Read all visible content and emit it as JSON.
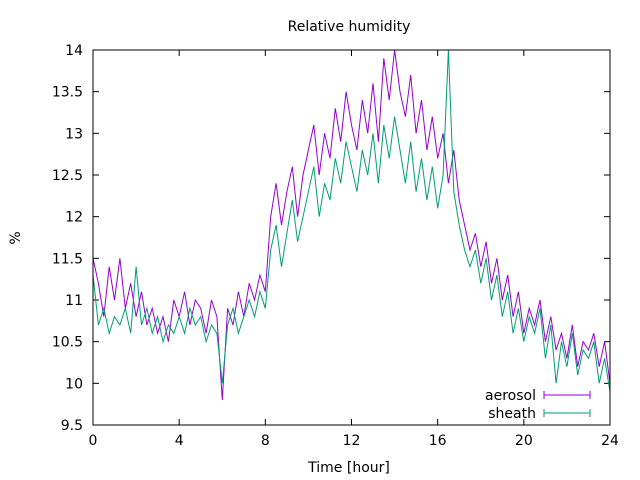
{
  "chart_data": {
    "type": "line",
    "title": "Relative humidity",
    "xlabel": "Time [hour]",
    "ylabel": "%",
    "xlim": [
      0,
      24
    ],
    "ylim": [
      9.5,
      14
    ],
    "xticks": [
      0,
      4,
      8,
      12,
      16,
      20,
      24
    ],
    "yticks": [
      9.5,
      10,
      10.5,
      11,
      11.5,
      12,
      12.5,
      13,
      13.5,
      14
    ],
    "grid": false,
    "legend": "bottom-right",
    "series": [
      {
        "name": "aerosol",
        "color": "#9400d3",
        "x": [
          0.0,
          0.25,
          0.5,
          0.75,
          1.0,
          1.25,
          1.5,
          1.75,
          2.0,
          2.25,
          2.5,
          2.75,
          3.0,
          3.25,
          3.5,
          3.75,
          4.0,
          4.25,
          4.5,
          4.75,
          5.0,
          5.25,
          5.5,
          5.75,
          6.0,
          6.25,
          6.5,
          6.75,
          7.0,
          7.25,
          7.5,
          7.75,
          8.0,
          8.25,
          8.5,
          8.75,
          9.0,
          9.25,
          9.5,
          9.75,
          10.0,
          10.25,
          10.5,
          10.75,
          11.0,
          11.25,
          11.5,
          11.75,
          12.0,
          12.25,
          12.5,
          12.75,
          13.0,
          13.25,
          13.5,
          13.75,
          14.0,
          14.25,
          14.5,
          14.75,
          15.0,
          15.25,
          15.5,
          15.75,
          16.0,
          16.25,
          16.5,
          16.75,
          17.0,
          17.25,
          17.5,
          17.75,
          18.0,
          18.25,
          18.5,
          18.75,
          19.0,
          19.25,
          19.5,
          19.75,
          20.0,
          20.25,
          20.5,
          20.75,
          21.0,
          21.25,
          21.5,
          21.75,
          22.0,
          22.25,
          22.5,
          22.75,
          23.0,
          23.25,
          23.5,
          23.75,
          24.0
        ],
        "values": [
          11.5,
          11.2,
          10.8,
          11.4,
          11.0,
          11.5,
          10.9,
          11.2,
          10.8,
          11.1,
          10.7,
          10.9,
          10.6,
          10.8,
          10.5,
          11.0,
          10.8,
          11.1,
          10.7,
          11.0,
          10.9,
          10.6,
          11.0,
          10.8,
          9.8,
          10.9,
          10.7,
          11.1,
          10.8,
          11.2,
          11.0,
          11.3,
          11.1,
          12.0,
          12.4,
          11.9,
          12.3,
          12.6,
          12.0,
          12.5,
          12.8,
          13.1,
          12.5,
          13.0,
          12.7,
          13.3,
          12.9,
          13.5,
          13.1,
          12.8,
          13.4,
          13.0,
          13.6,
          12.9,
          13.9,
          13.4,
          14.0,
          13.5,
          13.2,
          13.7,
          13.0,
          13.4,
          12.8,
          13.2,
          12.7,
          13.0,
          12.4,
          12.8,
          12.2,
          11.9,
          11.6,
          11.8,
          11.4,
          11.7,
          11.2,
          11.5,
          11.0,
          11.3,
          10.8,
          11.1,
          10.6,
          10.9,
          10.7,
          11.0,
          10.5,
          10.8,
          10.4,
          10.6,
          10.3,
          10.7,
          10.2,
          10.5,
          10.4,
          10.6,
          10.2,
          10.5,
          10.0
        ]
      },
      {
        "name": "sheath",
        "color": "#009e73",
        "x": [
          0.0,
          0.25,
          0.5,
          0.75,
          1.0,
          1.25,
          1.5,
          1.75,
          2.0,
          2.25,
          2.5,
          2.75,
          3.0,
          3.25,
          3.5,
          3.75,
          4.0,
          4.25,
          4.5,
          4.75,
          5.0,
          5.25,
          5.5,
          5.75,
          6.0,
          6.25,
          6.5,
          6.75,
          7.0,
          7.25,
          7.5,
          7.75,
          8.0,
          8.25,
          8.5,
          8.75,
          9.0,
          9.25,
          9.5,
          9.75,
          10.0,
          10.25,
          10.5,
          10.75,
          11.0,
          11.25,
          11.5,
          11.75,
          12.0,
          12.25,
          12.5,
          12.75,
          13.0,
          13.25,
          13.5,
          13.75,
          14.0,
          14.25,
          14.5,
          14.75,
          15.0,
          15.25,
          15.5,
          15.75,
          16.0,
          16.25,
          16.5,
          16.75,
          17.0,
          17.25,
          17.5,
          17.75,
          18.0,
          18.25,
          18.5,
          18.75,
          19.0,
          19.25,
          19.5,
          19.75,
          20.0,
          20.25,
          20.5,
          20.75,
          21.0,
          21.25,
          21.5,
          21.75,
          22.0,
          22.25,
          22.5,
          22.75,
          23.0,
          23.25,
          23.5,
          23.75,
          24.0
        ],
        "values": [
          11.3,
          10.7,
          10.9,
          10.6,
          10.8,
          10.7,
          10.9,
          10.6,
          11.4,
          10.7,
          10.9,
          10.6,
          10.8,
          10.5,
          10.7,
          10.6,
          10.8,
          10.6,
          10.9,
          10.7,
          10.8,
          10.5,
          10.7,
          10.6,
          10.0,
          10.7,
          10.9,
          10.6,
          10.8,
          11.0,
          10.8,
          11.1,
          10.9,
          11.6,
          11.9,
          11.4,
          11.8,
          12.2,
          11.7,
          12.0,
          12.3,
          12.6,
          12.0,
          12.4,
          12.2,
          12.7,
          12.4,
          12.9,
          12.6,
          12.3,
          12.8,
          12.5,
          13.0,
          12.4,
          13.1,
          12.7,
          13.2,
          12.8,
          12.4,
          12.9,
          12.3,
          12.7,
          12.2,
          12.6,
          12.1,
          12.5,
          14.0,
          12.3,
          11.9,
          11.6,
          11.4,
          11.6,
          11.2,
          11.5,
          11.0,
          11.3,
          10.8,
          11.1,
          10.6,
          10.9,
          10.5,
          10.8,
          10.6,
          10.9,
          10.3,
          10.7,
          10.0,
          10.5,
          10.2,
          10.6,
          10.1,
          10.4,
          10.3,
          10.5,
          10.0,
          10.3,
          9.9
        ]
      }
    ]
  }
}
